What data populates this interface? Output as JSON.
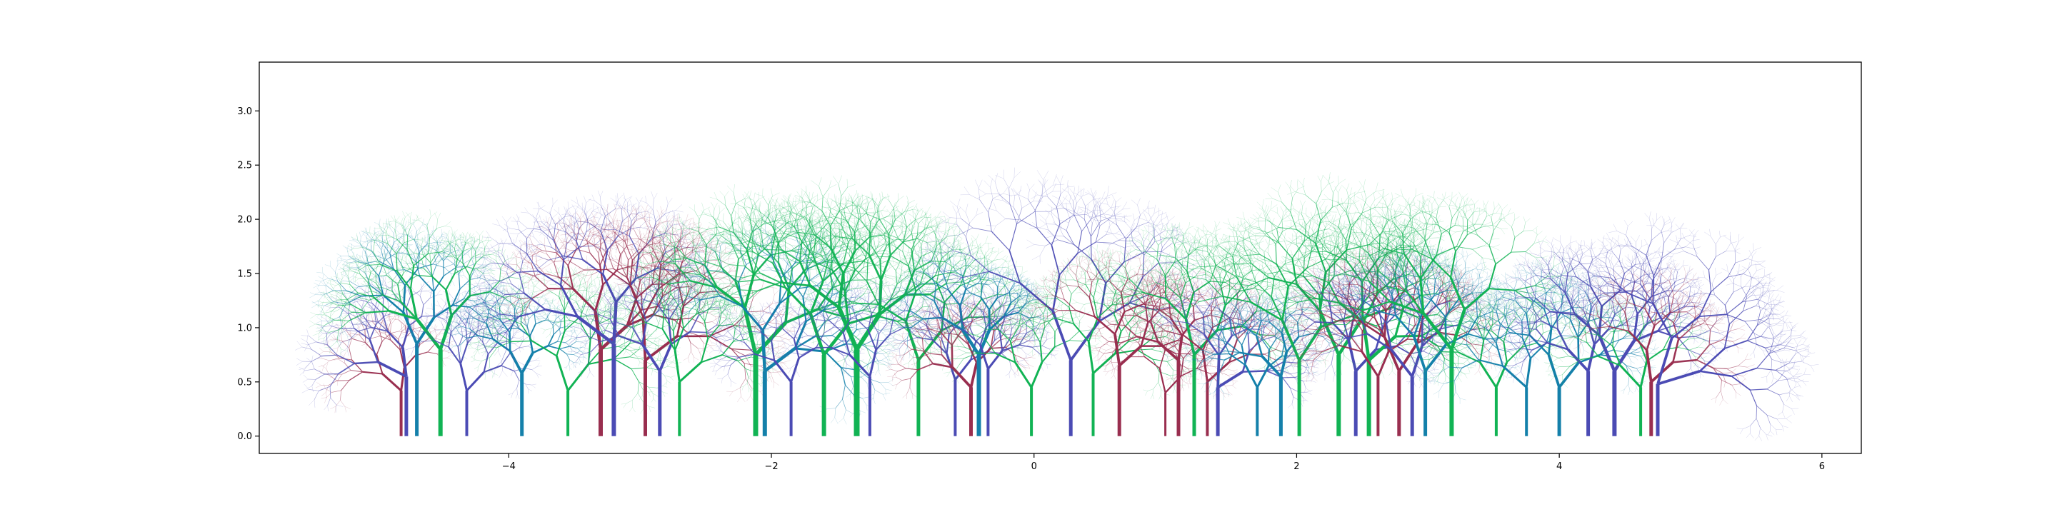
{
  "chart_data": {
    "type": "other",
    "description_kind": "fractal-tree-forest",
    "xlim": [
      -5.9,
      6.3
    ],
    "ylim": [
      -0.16,
      3.45
    ],
    "grid": false,
    "xticks": [
      -4,
      -2,
      0,
      2,
      4,
      6
    ],
    "xtick_labels": [
      "−4",
      "−2",
      "0",
      "2",
      "4",
      "6"
    ],
    "yticks": [
      0.0,
      0.5,
      1.0,
      1.5,
      2.0,
      2.5,
      3.0
    ],
    "ytick_labels": [
      "0.0",
      "0.5",
      "1.0",
      "1.5",
      "2.0",
      "2.5",
      "3.0"
    ],
    "palette": {
      "blue": "#4b4bb4",
      "green": "#11b354",
      "maroon": "#992e4f",
      "teal": "#1480aa"
    },
    "trees": [
      {
        "x": -4.82,
        "trunk_height": 0.42,
        "color": "maroon",
        "lean": -20,
        "size": 0.55,
        "levels": 7,
        "width": 4
      },
      {
        "x": -4.78,
        "trunk_height": 0.55,
        "color": "blue",
        "lean": -35,
        "size": 0.7,
        "levels": 7,
        "width": 5
      },
      {
        "x": -4.7,
        "trunk_height": 0.85,
        "color": "teal",
        "lean": 5,
        "size": 0.75,
        "levels": 8,
        "width": 5
      },
      {
        "x": -4.52,
        "trunk_height": 0.8,
        "color": "green",
        "lean": -10,
        "size": 0.85,
        "levels": 8,
        "width": 6
      },
      {
        "x": -4.32,
        "trunk_height": 0.42,
        "color": "blue",
        "lean": 15,
        "size": 0.6,
        "levels": 7,
        "width": 4
      },
      {
        "x": -3.9,
        "trunk_height": 0.58,
        "color": "teal",
        "lean": 0,
        "size": 0.55,
        "levels": 8,
        "width": 5
      },
      {
        "x": -3.55,
        "trunk_height": 0.42,
        "color": "green",
        "lean": 10,
        "size": 0.8,
        "levels": 8,
        "width": 4
      },
      {
        "x": -3.3,
        "trunk_height": 0.8,
        "color": "maroon",
        "lean": 20,
        "size": 0.85,
        "levels": 8,
        "width": 6
      },
      {
        "x": -3.2,
        "trunk_height": 0.85,
        "color": "blue",
        "lean": -25,
        "size": 1.0,
        "levels": 8,
        "width": 6
      },
      {
        "x": -2.96,
        "trunk_height": 0.7,
        "color": "maroon",
        "lean": 25,
        "size": 0.95,
        "levels": 8,
        "width": 5
      },
      {
        "x": -2.85,
        "trunk_height": 0.6,
        "color": "blue",
        "lean": -5,
        "size": 0.7,
        "levels": 7,
        "width": 5
      },
      {
        "x": -2.7,
        "trunk_height": 0.5,
        "color": "green",
        "lean": 20,
        "size": 0.7,
        "levels": 8,
        "width": 4
      },
      {
        "x": -2.12,
        "trunk_height": 0.75,
        "color": "green",
        "lean": 15,
        "size": 1.05,
        "levels": 8,
        "width": 7
      },
      {
        "x": -2.05,
        "trunk_height": 0.6,
        "color": "teal",
        "lean": 25,
        "size": 0.9,
        "levels": 8,
        "width": 6
      },
      {
        "x": -1.85,
        "trunk_height": 0.5,
        "color": "blue",
        "lean": -10,
        "size": 0.6,
        "levels": 7,
        "width": 4
      },
      {
        "x": -1.6,
        "trunk_height": 0.75,
        "color": "green",
        "lean": 10,
        "size": 0.95,
        "levels": 8,
        "width": 6
      },
      {
        "x": -1.35,
        "trunk_height": 0.8,
        "color": "green",
        "lean": 5,
        "size": 1.0,
        "levels": 8,
        "width": 8
      },
      {
        "x": -1.25,
        "trunk_height": 0.55,
        "color": "blue",
        "lean": -15,
        "size": 0.65,
        "levels": 7,
        "width": 4
      },
      {
        "x": -0.88,
        "trunk_height": 0.7,
        "color": "green",
        "lean": 10,
        "size": 0.9,
        "levels": 8,
        "width": 5
      },
      {
        "x": -0.6,
        "trunk_height": 0.52,
        "color": "blue",
        "lean": 10,
        "size": 0.6,
        "levels": 7,
        "width": 4
      },
      {
        "x": -0.48,
        "trunk_height": 0.45,
        "color": "maroon",
        "lean": -15,
        "size": 0.6,
        "levels": 7,
        "width": 5
      },
      {
        "x": -0.42,
        "trunk_height": 0.75,
        "color": "teal",
        "lean": -5,
        "size": 0.65,
        "levels": 8,
        "width": 6
      },
      {
        "x": -0.35,
        "trunk_height": 0.62,
        "color": "blue",
        "lean": 10,
        "size": 0.55,
        "levels": 7,
        "width": 4
      },
      {
        "x": -0.02,
        "trunk_height": 0.45,
        "color": "green",
        "lean": -5,
        "size": 0.65,
        "levels": 7,
        "width": 4
      },
      {
        "x": 0.28,
        "trunk_height": 0.7,
        "color": "blue",
        "lean": 8,
        "size": 1.15,
        "levels": 8,
        "width": 5
      },
      {
        "x": 0.45,
        "trunk_height": 0.58,
        "color": "green",
        "lean": 20,
        "size": 0.7,
        "levels": 8,
        "width": 4
      },
      {
        "x": 0.65,
        "trunk_height": 0.65,
        "color": "maroon",
        "lean": 20,
        "size": 0.7,
        "levels": 8,
        "width": 5
      },
      {
        "x": 1.0,
        "trunk_height": 0.4,
        "color": "maroon",
        "lean": 15,
        "size": 0.55,
        "levels": 7,
        "width": 3
      },
      {
        "x": 1.1,
        "trunk_height": 0.7,
        "color": "maroon",
        "lean": -20,
        "size": 0.6,
        "levels": 7,
        "width": 5
      },
      {
        "x": 1.22,
        "trunk_height": 0.75,
        "color": "green",
        "lean": 15,
        "size": 0.8,
        "levels": 8,
        "width": 5
      },
      {
        "x": 1.32,
        "trunk_height": 0.5,
        "color": "maroon",
        "lean": 20,
        "size": 0.7,
        "levels": 7,
        "width": 4
      },
      {
        "x": 1.4,
        "trunk_height": 0.45,
        "color": "blue",
        "lean": 30,
        "size": 0.7,
        "levels": 7,
        "width": 5
      },
      {
        "x": 1.7,
        "trunk_height": 0.45,
        "color": "teal",
        "lean": 0,
        "size": 0.55,
        "levels": 7,
        "width": 4
      },
      {
        "x": 1.88,
        "trunk_height": 0.55,
        "color": "teal",
        "lean": -15,
        "size": 0.6,
        "levels": 7,
        "width": 5
      },
      {
        "x": 2.02,
        "trunk_height": 0.7,
        "color": "green",
        "lean": 5,
        "size": 0.95,
        "levels": 8,
        "width": 5
      },
      {
        "x": 2.32,
        "trunk_height": 0.75,
        "color": "green",
        "lean": 5,
        "size": 1.05,
        "levels": 8,
        "width": 6
      },
      {
        "x": 2.45,
        "trunk_height": 0.6,
        "color": "blue",
        "lean": 15,
        "size": 0.7,
        "levels": 8,
        "width": 5
      },
      {
        "x": 2.55,
        "trunk_height": 0.7,
        "color": "green",
        "lean": 20,
        "size": 0.85,
        "levels": 8,
        "width": 6
      },
      {
        "x": 2.62,
        "trunk_height": 0.55,
        "color": "maroon",
        "lean": -5,
        "size": 0.65,
        "levels": 7,
        "width": 4
      },
      {
        "x": 2.78,
        "trunk_height": 0.6,
        "color": "maroon",
        "lean": 5,
        "size": 0.8,
        "levels": 8,
        "width": 5
      },
      {
        "x": 2.88,
        "trunk_height": 0.55,
        "color": "blue",
        "lean": -10,
        "size": 0.75,
        "levels": 7,
        "width": 5
      },
      {
        "x": 2.98,
        "trunk_height": 0.6,
        "color": "teal",
        "lean": 10,
        "size": 0.8,
        "levels": 8,
        "width": 5
      },
      {
        "x": 3.18,
        "trunk_height": 0.8,
        "color": "green",
        "lean": -10,
        "size": 1.0,
        "levels": 8,
        "width": 6
      },
      {
        "x": 3.52,
        "trunk_height": 0.45,
        "color": "green",
        "lean": -5,
        "size": 0.65,
        "levels": 7,
        "width": 4
      },
      {
        "x": 3.75,
        "trunk_height": 0.45,
        "color": "teal",
        "lean": -20,
        "size": 0.7,
        "levels": 7,
        "width": 4
      },
      {
        "x": 4.0,
        "trunk_height": 0.45,
        "color": "teal",
        "lean": 10,
        "size": 0.75,
        "levels": 8,
        "width": 5
      },
      {
        "x": 4.22,
        "trunk_height": 0.6,
        "color": "blue",
        "lean": -15,
        "size": 0.65,
        "levels": 7,
        "width": 5
      },
      {
        "x": 4.42,
        "trunk_height": 0.6,
        "color": "blue",
        "lean": 5,
        "size": 0.85,
        "levels": 8,
        "width": 6
      },
      {
        "x": 4.62,
        "trunk_height": 0.45,
        "color": "green",
        "lean": -15,
        "size": 0.65,
        "levels": 7,
        "width": 4
      },
      {
        "x": 4.7,
        "trunk_height": 0.5,
        "color": "maroon",
        "lean": 20,
        "size": 0.7,
        "levels": 7,
        "width": 5
      },
      {
        "x": 4.75,
        "trunk_height": 0.48,
        "color": "blue",
        "lean": 45,
        "size": 1.05,
        "levels": 8,
        "width": 5
      }
    ]
  }
}
